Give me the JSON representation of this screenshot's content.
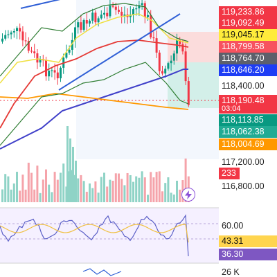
{
  "price_axis": {
    "tags": [
      {
        "label": "119,233.86",
        "bg": "#f23645",
        "fg": "#ffffff"
      },
      {
        "label": "119,092.49",
        "bg": "#f23645",
        "fg": "#ffffff"
      },
      {
        "label": "119,045.17",
        "bg": "#ffeb3b",
        "fg": "#111111"
      },
      {
        "label": "118,799.58",
        "bg": "#f7525f",
        "fg": "#ffffff"
      },
      {
        "label": "118,764.70",
        "bg": "#5d606b",
        "fg": "#ffffff"
      },
      {
        "label": "118,646.20",
        "bg": "#1e3df5",
        "fg": "#ffffff"
      },
      {
        "label": "118,190.48",
        "bg": "#f23645",
        "fg": "#ffffff"
      },
      {
        "label": "118,113.85",
        "bg": "#089981",
        "fg": "#ffffff"
      },
      {
        "label": "118,062.38",
        "bg": "#22ab94",
        "fg": "#ffffff"
      },
      {
        "label": "118,004.69",
        "bg": "#ff9800",
        "fg": "#ffffff"
      }
    ],
    "countdown": "03:04",
    "plain_labels": [
      "118,400.00",
      "117,200.00",
      "116,800.00"
    ],
    "volume_tag": {
      "label": "233",
      "bg": "#f23645",
      "fg": "#ffffff"
    }
  },
  "oscillator": {
    "level_label": "60.00",
    "tags": [
      {
        "label": "43.31",
        "bg": "#ffd54f",
        "fg": "#111111"
      },
      {
        "label": "36.30",
        "bg": "#7e57c2",
        "fg": "#ffffff"
      }
    ]
  },
  "bottom_pane": {
    "axis_label": "26 K"
  },
  "colors": {
    "up": "#089981",
    "down": "#f23645",
    "bb_line": "#2e7d32",
    "fast_ma": "#f0e040",
    "mid_ma": "#e53935",
    "slow_ma": "#3f3fc9",
    "long_ma": "#ff9800",
    "trendline": "#2f5fd6"
  },
  "icons": {
    "alert_button": "lightning-icon"
  }
}
